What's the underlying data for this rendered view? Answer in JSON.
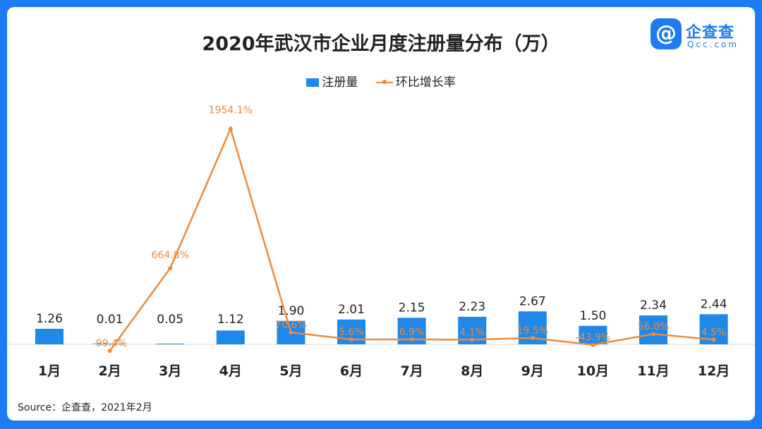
{
  "title": "2020年武汉市企业月度注册量分布（万）",
  "logo": {
    "name": "企查查",
    "domain": "Qcc.com",
    "icon_glyph": "@"
  },
  "source": "Source：企查查，2021年2月",
  "colors": {
    "bar": "#1f88e8",
    "line": "#ee8a3a",
    "frame": "#1d7cf2"
  },
  "chart_data": {
    "type": "bar",
    "categories": [
      "1月",
      "2月",
      "3月",
      "4月",
      "5月",
      "6月",
      "7月",
      "8月",
      "9月",
      "10月",
      "11月",
      "12月"
    ],
    "series": [
      {
        "name": "注册量",
        "type": "bar",
        "values": [
          1.26,
          0.01,
          0.05,
          1.12,
          1.9,
          2.01,
          2.15,
          2.23,
          2.67,
          1.5,
          2.34,
          2.44
        ],
        "labels": [
          "1.26",
          "0.01",
          "0.05",
          "1.12",
          "1.90",
          "2.01",
          "2.15",
          "2.23",
          "2.67",
          "1.50",
          "2.34",
          "2.44"
        ]
      },
      {
        "name": "环比增长率",
        "type": "line",
        "values": [
          null,
          -99.4,
          664.8,
          1954.1,
          70.6,
          5.6,
          6.9,
          4.1,
          19.5,
          -43.9,
          56.0,
          4.5
        ],
        "labels": [
          "",
          "-99.4%",
          "664.8%",
          "1954.1%",
          "70.6%",
          "5.6%",
          "6.9%",
          "4.1%",
          "19.5%",
          "-43.9%",
          "56.0%",
          "4.5%"
        ]
      }
    ],
    "legend_position": "top-center",
    "grid": false
  }
}
